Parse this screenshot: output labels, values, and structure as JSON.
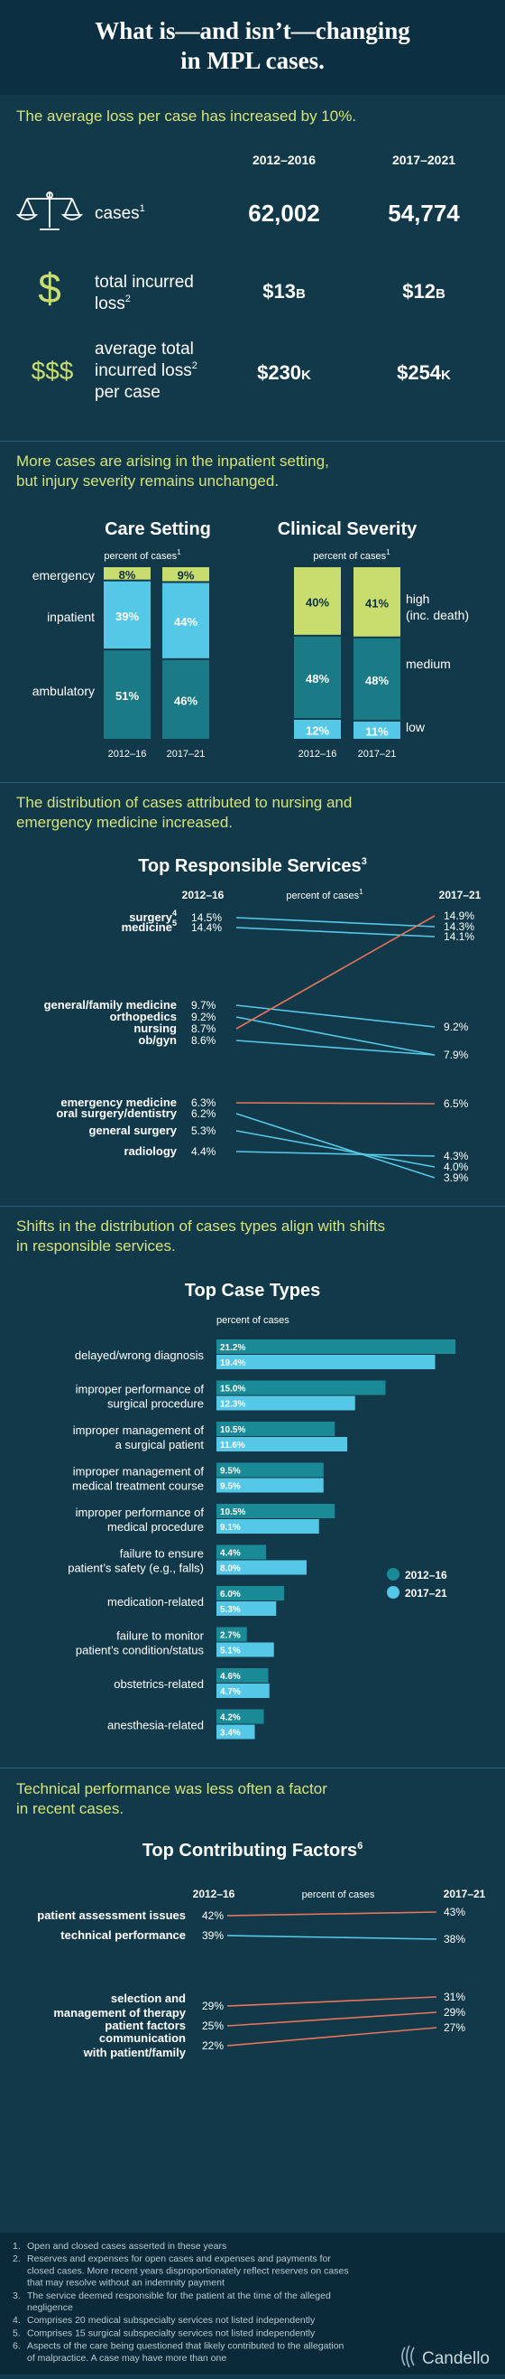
{
  "header": {
    "title_line1": "What is—and isn’t—changing",
    "title_line2": "in MPL cases."
  },
  "section1": {
    "lead": "The average loss per case has increased by 10%.",
    "col1": "2012–2016",
    "col2": "2017–2021",
    "rows": [
      {
        "icon": "scales-icon",
        "label1": "cases",
        "sup": "1",
        "label2": "",
        "label3": "",
        "v1": "62,002",
        "v2": "54,774"
      },
      {
        "icon": "dollar-icon",
        "label1": "total incurred",
        "label2": "loss",
        "sup": "2",
        "label3": "",
        "v1": "$13",
        "v1s": "B",
        "v2": "$12",
        "v2s": "B"
      },
      {
        "icon": "triple-dollar-icon",
        "label1": "average total",
        "label2": "incurred loss",
        "sup": "2",
        "label3": "per case",
        "v1": "$230",
        "v1s": "K",
        "v2": "$254",
        "v2s": "K"
      }
    ],
    "dollar": "$",
    "triple_dollar": "$$$"
  },
  "section2": {
    "lead1": "More cases are arising in the inpatient setting,",
    "lead2": "but injury severity remains unchanged.",
    "care": {
      "title": "Care Setting",
      "subtitle": "percent of cases",
      "sup": "1",
      "rows": [
        "emergency",
        "inpatient",
        "ambulatory"
      ],
      "years": [
        "2012–16",
        "2017–21"
      ],
      "chart_data": {
        "type": "bar",
        "categories": [
          "2012–16",
          "2017–21"
        ],
        "series": [
          {
            "name": "emergency",
            "values": [
              8,
              9
            ],
            "labels": [
              "8%",
              "9%"
            ]
          },
          {
            "name": "inpatient",
            "values": [
              39,
              44
            ],
            "labels": [
              "39%",
              "44%"
            ]
          },
          {
            "name": "ambulatory",
            "values": [
              51,
              46
            ],
            "labels": [
              "51%",
              "46%"
            ]
          }
        ]
      }
    },
    "severity": {
      "title": "Clinical Severity",
      "subtitle": "percent of cases",
      "sup": "1",
      "rows": [
        "high",
        "(inc. death)",
        "medium",
        "low"
      ],
      "years": [
        "2012–16",
        "2017–21"
      ],
      "chart_data": {
        "type": "bar",
        "categories": [
          "2012–16",
          "2017–21"
        ],
        "series": [
          {
            "name": "high (inc. death)",
            "values": [
              40,
              41
            ],
            "labels": [
              "40%",
              "41%"
            ]
          },
          {
            "name": "medium",
            "values": [
              48,
              48
            ],
            "labels": [
              "48%",
              "48%"
            ]
          },
          {
            "name": "low",
            "values": [
              12,
              11
            ],
            "labels": [
              "12%",
              "11%"
            ]
          }
        ]
      }
    },
    "colors": {
      "emergency": "#c9dc6e",
      "inpatient": "#55c8e8",
      "ambulatory": "#1a7a86"
    }
  },
  "section3": {
    "lead1": "The distribution of cases attributed to nursing and",
    "lead2": "emergency medicine increased.",
    "title": "Top Responsible Services",
    "title_sup": "3",
    "col1": "2012–16",
    "col_mid": "percent of cases",
    "col_mid_sup": "1",
    "col2": "2017–21",
    "chart_data": {
      "type": "line",
      "series": [
        {
          "name": "surgery",
          "sup": "4",
          "v1": 14.5,
          "v2": 14.3,
          "l1": "14.5%",
          "l2": "14.3%"
        },
        {
          "name": "medicine",
          "sup": "5",
          "v1": 14.4,
          "v2": 14.1,
          "l1": "14.4%",
          "l2": "14.1%"
        },
        {
          "name": "general/family medicine",
          "v1": 9.7,
          "v2": 9.2,
          "l1": "9.7%",
          "l2": "9.2%"
        },
        {
          "name": "orthopedics",
          "v1": 9.2,
          "v2": 7.9,
          "l1": "9.2%",
          "l2": "7.9%"
        },
        {
          "name": "nursing",
          "v1": 8.7,
          "v2": 14.9,
          "l1": "8.7%",
          "l2": "14.9%",
          "highlight": true
        },
        {
          "name": "ob/gyn",
          "v1": 8.6,
          "v2": 7.9,
          "l1": "8.6%",
          "l2": ""
        },
        {
          "name": "emergency medicine",
          "v1": 6.3,
          "v2": 6.5,
          "l1": "6.3%",
          "l2": "6.5%",
          "highlight": true
        },
        {
          "name": "oral surgery/dentistry",
          "v1": 6.2,
          "v2": 3.9,
          "l1": "6.2%",
          "l2": "3.9%"
        },
        {
          "name": "general surgery",
          "v1": 5.3,
          "v2": 4.0,
          "l1": "5.3%",
          "l2": "4.0%"
        },
        {
          "name": "radiology",
          "v1": 4.4,
          "v2": 4.3,
          "l1": "4.4%",
          "l2": "4.3%"
        }
      ]
    },
    "colors": {
      "normal": "#55c8e8",
      "highlight": "#e8755a"
    }
  },
  "section4": {
    "lead1": "Shifts in the distribution of cases types align with shifts",
    "lead2": "in responsible services.",
    "title": "Top Case Types",
    "subtitle": "percent of cases",
    "legend": [
      "2012–16",
      "2017–21"
    ],
    "chart_data": {
      "type": "bar",
      "series_names": [
        "2012–16",
        "2017–21"
      ],
      "categories": [
        {
          "l1": "delayed/wrong diagnosis",
          "l2": "",
          "a": 21.2,
          "b": 19.4,
          "la": "21.2%",
          "lb": "19.4%"
        },
        {
          "l1": "improper performance of",
          "l2": "surgical procedure",
          "a": 15.0,
          "b": 12.3,
          "la": "15.0%",
          "lb": "12.3%"
        },
        {
          "l1": "improper management of",
          "l2": "a surgical patient",
          "a": 10.5,
          "b": 11.6,
          "la": "10.5%",
          "lb": "11.6%"
        },
        {
          "l1": "improper management of",
          "l2": "medical treatment course",
          "a": 9.5,
          "b": 9.5,
          "la": "9.5%",
          "lb": "9.5%"
        },
        {
          "l1": "improper performance of",
          "l2": "medical procedure",
          "a": 10.5,
          "b": 9.1,
          "la": "10.5%",
          "lb": "9.1%"
        },
        {
          "l1": "failure to ensure",
          "l2": "patient’s safety (e.g., falls)",
          "a": 4.4,
          "b": 8.0,
          "la": "4.4%",
          "lb": "8.0%"
        },
        {
          "l1": "medication-related",
          "l2": "",
          "a": 6.0,
          "b": 5.3,
          "la": "6.0%",
          "lb": "5.3%"
        },
        {
          "l1": "failure to monitor",
          "l2": "patient’s condition/status",
          "a": 2.7,
          "b": 5.1,
          "la": "2.7%",
          "lb": "5.1%"
        },
        {
          "l1": "obstetrics-related",
          "l2": "",
          "a": 4.6,
          "b": 4.7,
          "la": "4.6%",
          "lb": "4.7%"
        },
        {
          "l1": "anesthesia-related",
          "l2": "",
          "a": 4.2,
          "b": 3.4,
          "la": "4.2%",
          "lb": "3.4%"
        }
      ]
    },
    "colors": {
      "a": "#1a8a96",
      "b": "#55c8e8"
    }
  },
  "section5": {
    "lead1": "Technical performance was less often a factor",
    "lead2": "in recent cases.",
    "title": "Top Contributing Factors",
    "title_sup": "6",
    "col1": "2012–16",
    "col_mid": "percent of cases",
    "col2": "2017–21",
    "chart_data": {
      "type": "line",
      "series": [
        {
          "l1": "patient assessment issues",
          "l2": "",
          "v1": 42,
          "v2": 43,
          "a": "42%",
          "b": "43%",
          "color": "#e8755a"
        },
        {
          "l1": "technical performance",
          "l2": "",
          "v1": 39,
          "v2": 38,
          "a": "39%",
          "b": "38%",
          "color": "#55c8e8"
        },
        {
          "l1": "selection and",
          "l2": "management of therapy",
          "v1": 29,
          "v2": 31,
          "a": "29%",
          "b": "31%",
          "color": "#e8755a"
        },
        {
          "l1": "patient factors",
          "l2": "",
          "v1": 25,
          "v2": 29,
          "a": "25%",
          "b": "29%",
          "color": "#e8755a"
        },
        {
          "l1": "communication",
          "l2": "with patient/family",
          "v1": 22,
          "v2": 27,
          "a": "22%",
          "b": "27%",
          "color": "#e8755a"
        }
      ]
    }
  },
  "footnotes": [
    [
      "1.",
      "Open and closed cases asserted in these years"
    ],
    [
      "2.",
      "Reserves and expenses for open cases and expenses and payments for",
      "closed cases. More recent years disproportionately reflect reserves on cases",
      "that may resolve without an indemnity payment"
    ],
    [
      "3.",
      "The service deemed responsible for the patient at the time of the alleged",
      "negligence"
    ],
    [
      "4.",
      "Comprises 20 medical subspecialty services not listed independently"
    ],
    [
      "5.",
      "Comprises 15 surgical subspecialty services not listed independently"
    ],
    [
      "6.",
      "Aspects of the care being questioned that likely contributed to the allegation",
      "of malpractice. A case may have more than one"
    ]
  ],
  "brand": "Candello"
}
